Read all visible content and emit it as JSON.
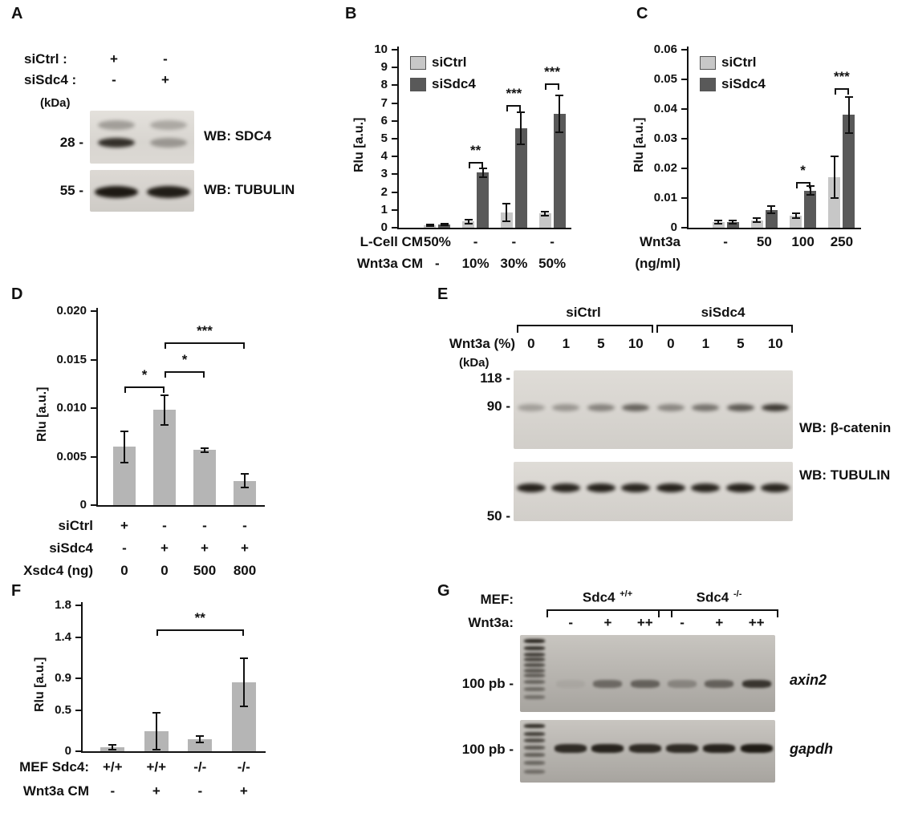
{
  "figure": {
    "panel_labels": {
      "A": "A",
      "B": "B",
      "C": "C",
      "D": "D",
      "E": "E",
      "F": "F",
      "G": "G"
    }
  },
  "panel_a": {
    "condition_rows": [
      {
        "label": "siCtrl :",
        "values": [
          "+",
          "-"
        ]
      },
      {
        "label": "siSdc4 :",
        "values": [
          "-",
          "+"
        ]
      }
    ],
    "kda": "(kDa)",
    "blots": [
      {
        "marker": "28 -",
        "wb": "WB: SDC4",
        "band_rows": [
          {
            "y": 0.27,
            "intensities": [
              0.3,
              0.25
            ]
          },
          {
            "y": 0.6,
            "intensities": [
              0.85,
              0.32
            ]
          }
        ]
      },
      {
        "marker": "55 -",
        "wb": "WB: TUBULIN",
        "band_rows": [
          {
            "y": 0.52,
            "intensities": [
              0.97,
              0.95
            ]
          }
        ]
      }
    ]
  },
  "panel_e": {
    "group_labels": [
      "siCtrl",
      "siSdc4"
    ],
    "lane_header": {
      "label": "Wnt3a (%)",
      "values": [
        "0",
        "1",
        "5",
        "10",
        "0",
        "1",
        "5",
        "10"
      ]
    },
    "kda": "(kDa)",
    "blots": [
      {
        "markers": [
          "118 -",
          "90 -"
        ],
        "wb": "WB: β-catenin",
        "band_rows": [
          {
            "y": 0.47,
            "intensities": [
              0.28,
              0.32,
              0.42,
              0.58,
              0.4,
              0.5,
              0.63,
              0.8
            ]
          }
        ]
      },
      {
        "markers": [
          "50 -"
        ],
        "wb": "WB: TUBULIN",
        "band_rows": [
          {
            "y": 0.44,
            "intensities": [
              0.92,
              0.9,
              0.92,
              0.9,
              0.92,
              0.9,
              0.92,
              0.9
            ]
          }
        ]
      }
    ]
  },
  "panel_g": {
    "mef_label": "MEF:",
    "genotypes": [
      {
        "name": "Sdc4 ",
        "sup": "+/+"
      },
      {
        "name": "Sdc4 ",
        "sup": "-/-"
      }
    ],
    "treatment": {
      "label": "Wnt3a:",
      "values": [
        "-",
        "+",
        "++",
        "-",
        "+",
        "++"
      ]
    },
    "gels": [
      {
        "marker": "100 pb -",
        "gene": "axin2",
        "band_y": 0.63,
        "intensities": [
          0.06,
          0.45,
          0.5,
          0.28,
          0.5,
          0.78
        ]
      },
      {
        "marker": "100 pb -",
        "gene": "gapdh",
        "band_y": 0.45,
        "intensities": [
          0.85,
          0.9,
          0.85,
          0.85,
          0.9,
          0.95
        ]
      }
    ]
  },
  "chart_data": [
    {
      "id": "B",
      "type": "bar",
      "title": "",
      "xlabel": "",
      "ylabel": "Rlu [a.u.]",
      "ylim": [
        0,
        10
      ],
      "yticks": [
        0,
        1,
        2,
        3,
        4,
        5,
        6,
        7,
        8,
        9,
        10
      ],
      "ytick_labels": [
        "0",
        "1",
        "2",
        "3",
        "4",
        "5",
        "6",
        "7",
        "8",
        "9",
        "10"
      ],
      "legend": [
        "siCtrl",
        "siSdc4"
      ],
      "series": [
        {
          "name": "siCtrl",
          "color": "#c7c7c7",
          "values": [
            0.15,
            0.35,
            0.85,
            0.8
          ],
          "errors": [
            0.05,
            0.1,
            0.5,
            0.12
          ]
        },
        {
          "name": "siSdc4",
          "color": "#595959",
          "values": [
            0.2,
            3.1,
            5.6,
            6.4
          ],
          "errors": [
            0.05,
            0.25,
            0.9,
            1.05
          ]
        }
      ],
      "significance": [
        {
          "a": [
            0,
            1
          ],
          "b": [
            1,
            1
          ],
          "label": "**",
          "y": 3.7
        },
        {
          "a": [
            0,
            2
          ],
          "b": [
            1,
            2
          ],
          "label": "***",
          "y": 6.9
        },
        {
          "a": [
            0,
            3
          ],
          "b": [
            1,
            3
          ],
          "label": "***",
          "y": 8.1
        }
      ],
      "xrows": [
        {
          "label": "L-Cell CM",
          "values": [
            "50%",
            "-",
            "-",
            "-"
          ]
        },
        {
          "label": "Wnt3a CM",
          "values": [
            "-",
            "10%",
            "30%",
            "50%"
          ]
        }
      ]
    },
    {
      "id": "C",
      "type": "bar",
      "title": "",
      "xlabel": "",
      "ylabel": "Rlu [a.u.]",
      "ylim": [
        0,
        0.06
      ],
      "yticks": [
        0,
        0.01,
        0.02,
        0.03,
        0.04,
        0.05,
        0.06
      ],
      "ytick_labels": [
        "0",
        "0.01",
        "0.02",
        "0.03",
        "0.04",
        "0.05",
        "0.06"
      ],
      "legend": [
        "siCtrl",
        "siSdc4"
      ],
      "series": [
        {
          "name": "siCtrl",
          "color": "#c7c7c7",
          "values": [
            0.002,
            0.0025,
            0.004,
            0.017
          ],
          "errors": [
            0.0005,
            0.0007,
            0.0008,
            0.007
          ]
        },
        {
          "name": "siSdc4",
          "color": "#595959",
          "values": [
            0.002,
            0.006,
            0.0125,
            0.038
          ],
          "errors": [
            0.0005,
            0.0012,
            0.0015,
            0.006
          ]
        }
      ],
      "significance": [
        {
          "a": [
            0,
            2
          ],
          "b": [
            1,
            2
          ],
          "label": "*",
          "y": 0.0155
        },
        {
          "a": [
            0,
            3
          ],
          "b": [
            1,
            3
          ],
          "label": "***",
          "y": 0.047
        }
      ],
      "xrows": [
        {
          "label": "Wnt3a",
          "values": [
            "-",
            "50",
            "100",
            "250"
          ]
        },
        {
          "label": "(ng/ml)",
          "values": [
            "",
            "",
            "",
            ""
          ]
        }
      ]
    },
    {
      "id": "D",
      "type": "bar",
      "title": "",
      "xlabel": "",
      "ylabel": "Rlu [a.u.]",
      "ylim": [
        0,
        0.02
      ],
      "yticks": [
        0,
        0.005,
        0.01,
        0.015,
        0.02
      ],
      "ytick_labels": [
        "0",
        "0.005",
        "0.010",
        "0.015",
        "0.020"
      ],
      "series": [
        {
          "name": "",
          "color": "#b5b5b5",
          "values": [
            0.006,
            0.0098,
            0.0057,
            0.0025
          ],
          "errors": [
            0.0016,
            0.0015,
            0.0002,
            0.0007
          ]
        }
      ],
      "significance": [
        {
          "a": [
            0,
            0
          ],
          "b": [
            0,
            1
          ],
          "label": "*",
          "y": 0.0122
        },
        {
          "a": [
            0,
            1
          ],
          "b": [
            0,
            2
          ],
          "label": "*",
          "y": 0.0138
        },
        {
          "a": [
            0,
            1
          ],
          "b": [
            0,
            3
          ],
          "label": "***",
          "y": 0.0168
        }
      ],
      "xrows": [
        {
          "label": "siCtrl",
          "values": [
            "+",
            "-",
            "-",
            "-"
          ]
        },
        {
          "label": "siSdc4",
          "values": [
            "-",
            "+",
            "+",
            "+"
          ]
        },
        {
          "label": "Xsdc4 (ng)",
          "values": [
            "0",
            "0",
            "500",
            "800"
          ]
        }
      ]
    },
    {
      "id": "F",
      "type": "bar",
      "title": "",
      "xlabel": "",
      "ylabel": "Rlu [a.u.]",
      "ylim": [
        0,
        1.8
      ],
      "yticks": [
        0,
        0.5,
        0.9,
        1.4,
        1.8
      ],
      "ytick_labels": [
        "0",
        "0.5",
        "0.9",
        "1.4",
        "1.8"
      ],
      "series": [
        {
          "name": "",
          "color": "#b5b5b5",
          "values": [
            0.05,
            0.25,
            0.15,
            0.85
          ],
          "errors": [
            0.025,
            0.23,
            0.04,
            0.3
          ]
        }
      ],
      "significance": [
        {
          "a": [
            0,
            1
          ],
          "b": [
            0,
            3
          ],
          "label": "**",
          "y": 1.5
        }
      ],
      "xrows": [
        {
          "label": "MEF Sdc4:",
          "values": [
            "+/+",
            "+/+",
            "-/-",
            "-/-"
          ]
        },
        {
          "label": "Wnt3a CM",
          "values": [
            "-",
            "+",
            "-",
            "+"
          ]
        }
      ]
    }
  ]
}
